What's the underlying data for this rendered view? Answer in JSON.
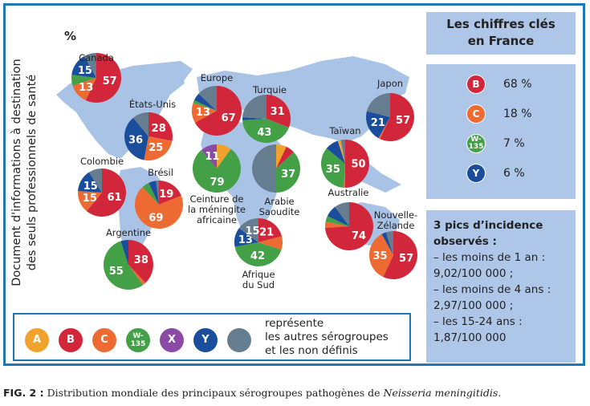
{
  "side_note": [
    "Document d'informations à destination",
    "des seuls professionnels de santé"
  ],
  "unit_label": "%",
  "colors": {
    "A": "#f1a22c",
    "B": "#d2273a",
    "C": "#ee6a33",
    "W135": "#43a047",
    "X": "#8a4aa6",
    "Y": "#1a4e9c",
    "other": "#657d8e",
    "map": "#a9c3e6",
    "frame": "#1f78b4",
    "panel": "#aec6e8"
  },
  "chart_data": {
    "type": "pie",
    "title": "Distribution mondiale des principaux sérogroupes pathogènes de Neisseria meningitidis",
    "legend_position": "bottom",
    "pies": [
      {
        "name": "Canada",
        "segments": [
          {
            "g": "B",
            "v": 57,
            "label": "57"
          },
          {
            "g": "C",
            "v": 13,
            "label": "13"
          },
          {
            "g": "W135",
            "v": 7
          },
          {
            "g": "Y",
            "v": 15,
            "label": "15"
          },
          {
            "g": "other",
            "v": 8
          }
        ]
      },
      {
        "name": "États-Unis",
        "segments": [
          {
            "g": "B",
            "v": 28,
            "label": "28"
          },
          {
            "g": "C",
            "v": 25,
            "label": "25"
          },
          {
            "g": "Y",
            "v": 36,
            "label": "36"
          },
          {
            "g": "other",
            "v": 11
          }
        ]
      },
      {
        "name": "Colombie",
        "segments": [
          {
            "g": "B",
            "v": 61,
            "label": "61"
          },
          {
            "g": "C",
            "v": 15,
            "label": "15"
          },
          {
            "g": "Y",
            "v": 15,
            "label": "15"
          },
          {
            "g": "other",
            "v": 9
          }
        ]
      },
      {
        "name": "Brésil",
        "segments": [
          {
            "g": "B",
            "v": 19,
            "label": "19"
          },
          {
            "g": "C",
            "v": 69,
            "label": "69"
          },
          {
            "g": "W135",
            "v": 5
          },
          {
            "g": "Y",
            "v": 5
          },
          {
            "g": "other",
            "v": 2
          }
        ]
      },
      {
        "name": "Argentine",
        "segments": [
          {
            "g": "B",
            "v": 38,
            "label": "38"
          },
          {
            "g": "C",
            "v": 2
          },
          {
            "g": "W135",
            "v": 55,
            "label": "55"
          },
          {
            "g": "Y",
            "v": 5
          }
        ]
      },
      {
        "name": "Europe",
        "segments": [
          {
            "g": "B",
            "v": 67,
            "label": "67"
          },
          {
            "g": "C",
            "v": 13,
            "label": "13"
          },
          {
            "g": "W135",
            "v": 2
          },
          {
            "g": "Y",
            "v": 5
          },
          {
            "g": "other",
            "v": 13
          }
        ]
      },
      {
        "name": "Turquie",
        "segments": [
          {
            "g": "B",
            "v": 31,
            "label": "31"
          },
          {
            "g": "W135",
            "v": 43,
            "label": "43"
          },
          {
            "g": "Y",
            "v": 2
          },
          {
            "g": "other",
            "v": 24
          }
        ]
      },
      {
        "name": "Ceinture de la méningite africaine",
        "segments": [
          {
            "g": "A",
            "v": 10
          },
          {
            "g": "W135",
            "v": 79,
            "label": "79"
          },
          {
            "g": "X",
            "v": 11,
            "label": "11"
          }
        ]
      },
      {
        "name": "Arabie Saoudite",
        "segments": [
          {
            "g": "A",
            "v": 7
          },
          {
            "g": "B",
            "v": 6
          },
          {
            "g": "W135",
            "v": 37,
            "label": "37"
          },
          {
            "g": "other",
            "v": 50
          }
        ]
      },
      {
        "name": "Afrique du Sud",
        "segments": [
          {
            "g": "B",
            "v": 21,
            "label": "21"
          },
          {
            "g": "C",
            "v": 9
          },
          {
            "g": "W135",
            "v": 42,
            "label": "42"
          },
          {
            "g": "Y",
            "v": 13,
            "label": "13"
          },
          {
            "g": "other",
            "v": 15,
            "label": "15"
          }
        ]
      },
      {
        "name": "Japon",
        "segments": [
          {
            "g": "B",
            "v": 57,
            "label": "57"
          },
          {
            "g": "C",
            "v": 1
          },
          {
            "g": "Y",
            "v": 21,
            "label": "21"
          },
          {
            "g": "other",
            "v": 21
          }
        ]
      },
      {
        "name": "Taïwan",
        "segments": [
          {
            "g": "B",
            "v": 50,
            "label": "50"
          },
          {
            "g": "C",
            "v": 1
          },
          {
            "g": "W135",
            "v": 35,
            "label": "35"
          },
          {
            "g": "Y",
            "v": 9
          },
          {
            "g": "A",
            "v": 2
          },
          {
            "g": "other",
            "v": 3
          }
        ]
      },
      {
        "name": "Australie",
        "segments": [
          {
            "g": "B",
            "v": 74,
            "label": "74"
          },
          {
            "g": "C",
            "v": 4
          },
          {
            "g": "W135",
            "v": 4
          },
          {
            "g": "Y",
            "v": 8
          },
          {
            "g": "other",
            "v": 10
          }
        ]
      },
      {
        "name": "Nouvelle-Zélande",
        "segments": [
          {
            "g": "B",
            "v": 57,
            "label": "57"
          },
          {
            "g": "C",
            "v": 35,
            "label": "35"
          },
          {
            "g": "Y",
            "v": 3
          },
          {
            "g": "other",
            "v": 5
          }
        ]
      }
    ]
  },
  "key_france": {
    "title_line1": "Les chiffres clés",
    "title_line2": "en France",
    "items": [
      {
        "g": "B",
        "label": "B",
        "value": "68 %"
      },
      {
        "g": "C",
        "label": "C",
        "value": "18 %"
      },
      {
        "g": "W135",
        "label": "W-135",
        "value": "7 %"
      },
      {
        "g": "Y",
        "label": "Y",
        "value": "6 %"
      }
    ]
  },
  "incidence": {
    "heading1": "3 pics d’incidence",
    "heading2": "observés :",
    "lines": [
      "– les moins de 1 an :",
      "9,02/100 000 ;",
      "– les moins de 4 ans :",
      "2,97/100 000 ;",
      "– les 15-24 ans :",
      "1,87/100 000"
    ]
  },
  "legend": {
    "items": [
      {
        "g": "A",
        "label": "A"
      },
      {
        "g": "B",
        "label": "B"
      },
      {
        "g": "C",
        "label": "C"
      },
      {
        "g": "W135",
        "label": "W-135"
      },
      {
        "g": "X",
        "label": "X"
      },
      {
        "g": "Y",
        "label": "Y"
      },
      {
        "g": "other",
        "label": ""
      }
    ],
    "text": [
      "représente",
      "les autres sérogroupes",
      "et les non définis"
    ]
  },
  "caption": {
    "fig": "FIG. 2 :",
    "text": " Distribution mondiale des principaux sérogroupes pathogènes de ",
    "species": "Neisseria meningitidis",
    "end": "."
  }
}
